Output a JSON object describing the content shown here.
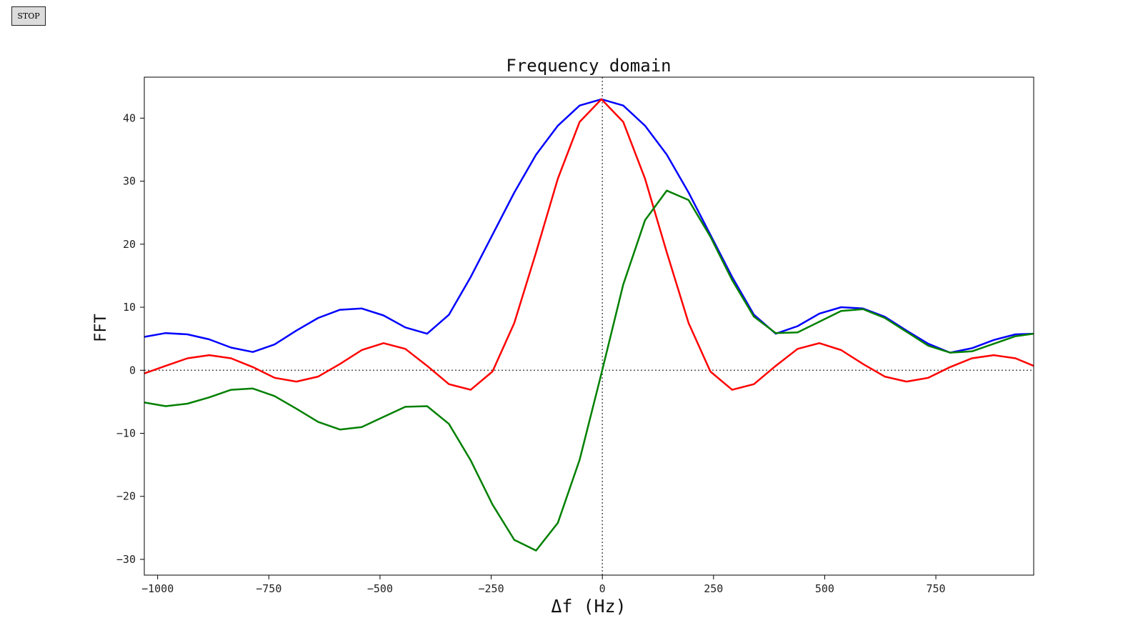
{
  "controls": {
    "stop_label": "STOP"
  },
  "chart_data": {
    "type": "line",
    "title": "Frequency domain",
    "xlabel": "Δf (Hz)",
    "ylabel": "FFT",
    "xlim": [
      -1030,
      970
    ],
    "ylim": [
      -32.5,
      46.5
    ],
    "xticks": [
      -1000,
      -750,
      -500,
      -250,
      0,
      250,
      500,
      750
    ],
    "xtick_labels": [
      "−1000",
      "−750",
      "−500",
      "−250",
      "0",
      "250",
      "500",
      "750"
    ],
    "yticks": [
      -30,
      -20,
      -10,
      0,
      10,
      20,
      30,
      40
    ],
    "ytick_labels": [
      "−30",
      "−20",
      "−10",
      "0",
      "10",
      "20",
      "30",
      "40"
    ],
    "reference_lines": {
      "x": 0,
      "y": 0,
      "style": "dotted"
    },
    "grid": false,
    "x": [
      -1030,
      -982,
      -933,
      -884,
      -835,
      -786,
      -737,
      -688,
      -639,
      -590,
      -541,
      -492,
      -443,
      -394,
      -345,
      -296,
      -247,
      -198,
      -149,
      -100,
      -51,
      -2,
      47,
      96,
      145,
      194,
      243,
      292,
      341,
      390,
      439,
      488,
      537,
      586,
      635,
      684,
      733,
      782,
      831,
      880,
      929,
      970
    ],
    "series": [
      {
        "color": "#0000ff",
        "values": [
          5.3,
          5.9,
          5.7,
          4.9,
          3.6,
          2.9,
          4.1,
          6.3,
          8.3,
          9.6,
          9.8,
          8.7,
          6.8,
          5.8,
          8.8,
          14.8,
          21.5,
          28.2,
          34.2,
          38.8,
          42.0,
          43.0,
          42.0,
          38.8,
          34.2,
          28.2,
          21.5,
          14.8,
          8.8,
          5.8,
          7.0,
          9.0,
          10.0,
          9.8,
          8.5,
          6.3,
          4.2,
          2.8,
          3.5,
          4.8,
          5.7,
          5.8
        ]
      },
      {
        "color": "#ff0000",
        "values": [
          -0.5,
          0.7,
          1.9,
          2.4,
          1.9,
          0.5,
          -1.2,
          -1.8,
          -1.0,
          1.0,
          3.2,
          4.3,
          3.4,
          0.7,
          -2.2,
          -3.1,
          -0.2,
          7.5,
          18.7,
          30.4,
          39.4,
          43.0,
          39.4,
          30.4,
          18.7,
          7.5,
          -0.2,
          -3.1,
          -2.2,
          0.7,
          3.4,
          4.3,
          3.2,
          1.0,
          -1.0,
          -1.8,
          -1.2,
          0.5,
          1.9,
          2.4,
          1.9,
          0.7
        ]
      },
      {
        "color": "#008000",
        "values": [
          -5.1,
          -5.7,
          -5.3,
          -4.3,
          -3.1,
          -2.9,
          -4.1,
          -6.1,
          -8.2,
          -9.4,
          -9.0,
          -7.4,
          -5.8,
          -5.7,
          -8.5,
          -14.3,
          -21.3,
          -26.9,
          -28.6,
          -24.2,
          -14.2,
          -0.5,
          13.6,
          23.8,
          28.5,
          27.0,
          21.2,
          14.3,
          8.5,
          5.9,
          6.0,
          7.7,
          9.4,
          9.7,
          8.3,
          6.1,
          3.9,
          2.8,
          3.0,
          4.2,
          5.4,
          5.8
        ]
      }
    ]
  }
}
